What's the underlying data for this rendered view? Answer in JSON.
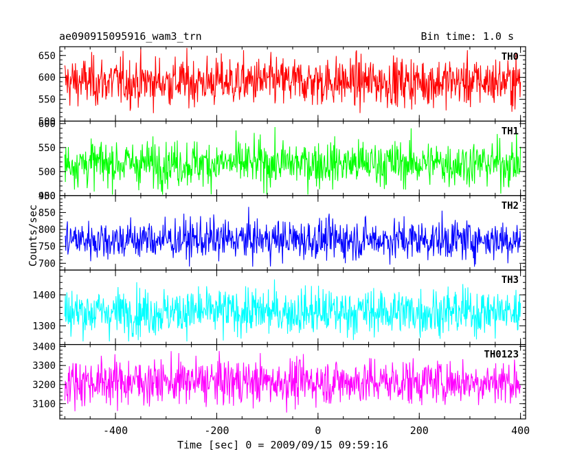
{
  "header": {
    "title": "ae090915095916_wam3_trn",
    "bin_time": "Bin time: 1.0 s"
  },
  "chart_data": {
    "type": "line",
    "xlabel": "Time [sec] 0 = 2009/09/15 09:59:16",
    "ylabel": "Counts/sec",
    "xlim": [
      -510,
      410
    ],
    "xticks": [
      -400,
      -200,
      0,
      200,
      400
    ],
    "x_start": -500,
    "x_end": 400,
    "x_step": 1,
    "panels": [
      {
        "name": "TH0",
        "color": "#ff0000",
        "ylim": [
          500,
          670
        ],
        "yticks": [
          500,
          550,
          600,
          650
        ],
        "mean": 590,
        "sigma": 28,
        "min_visible": 505,
        "max_visible": 670
      },
      {
        "name": "TH1",
        "color": "#00ff00",
        "ylim": [
          450,
          605
        ],
        "yticks": [
          450,
          500,
          550,
          600
        ],
        "mean": 517,
        "sigma": 24,
        "min_visible": 452,
        "max_visible": 600
      },
      {
        "name": "TH2",
        "color": "#0000ff",
        "ylim": [
          680,
          900
        ],
        "yticks": [
          700,
          750,
          800,
          850,
          900
        ],
        "mean": 770,
        "sigma": 30,
        "min_visible": 690,
        "max_visible": 893
      },
      {
        "name": "TH3",
        "color": "#00ffff",
        "ylim": [
          1240,
          1480
        ],
        "yticks": [
          1300,
          1400
        ],
        "mean": 1345,
        "sigma": 38,
        "min_visible": 1250,
        "max_visible": 1470
      },
      {
        "name": "TH0123",
        "color": "#ff00ff",
        "ylim": [
          3020,
          3410
        ],
        "yticks": [
          3100,
          3200,
          3300,
          3400
        ],
        "mean": 3215,
        "sigma": 60,
        "min_visible": 3030,
        "max_visible": 3390
      }
    ]
  }
}
